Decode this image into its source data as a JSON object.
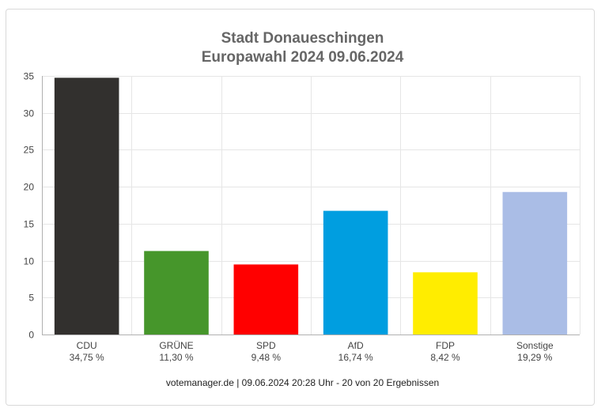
{
  "chart_data": {
    "type": "bar",
    "title": "Stadt Donaueschingen",
    "subtitle": "Europawahl 2024 09.06.2024",
    "categories": [
      "CDU",
      "GRÜNE",
      "SPD",
      "AfD",
      "FDP",
      "Sonstige"
    ],
    "value_labels": [
      "34,75 %",
      "11,30 %",
      "9,48 %",
      "16,74 %",
      "8,42 %",
      "19,29 %"
    ],
    "values": [
      34.75,
      11.3,
      9.48,
      16.74,
      8.42,
      19.29
    ],
    "colors": [
      "#32302e",
      "#46962b",
      "#ff0000",
      "#009ee0",
      "#ffed00",
      "#aabde6"
    ],
    "ylim": [
      0,
      35
    ],
    "yticks": [
      0,
      5,
      10,
      15,
      20,
      25,
      30,
      35
    ],
    "grid": true,
    "xlabel": "",
    "ylabel": ""
  },
  "footer": "votemanager.de | 09.06.2024 20:28 Uhr - 20 von 20 Ergebnissen"
}
